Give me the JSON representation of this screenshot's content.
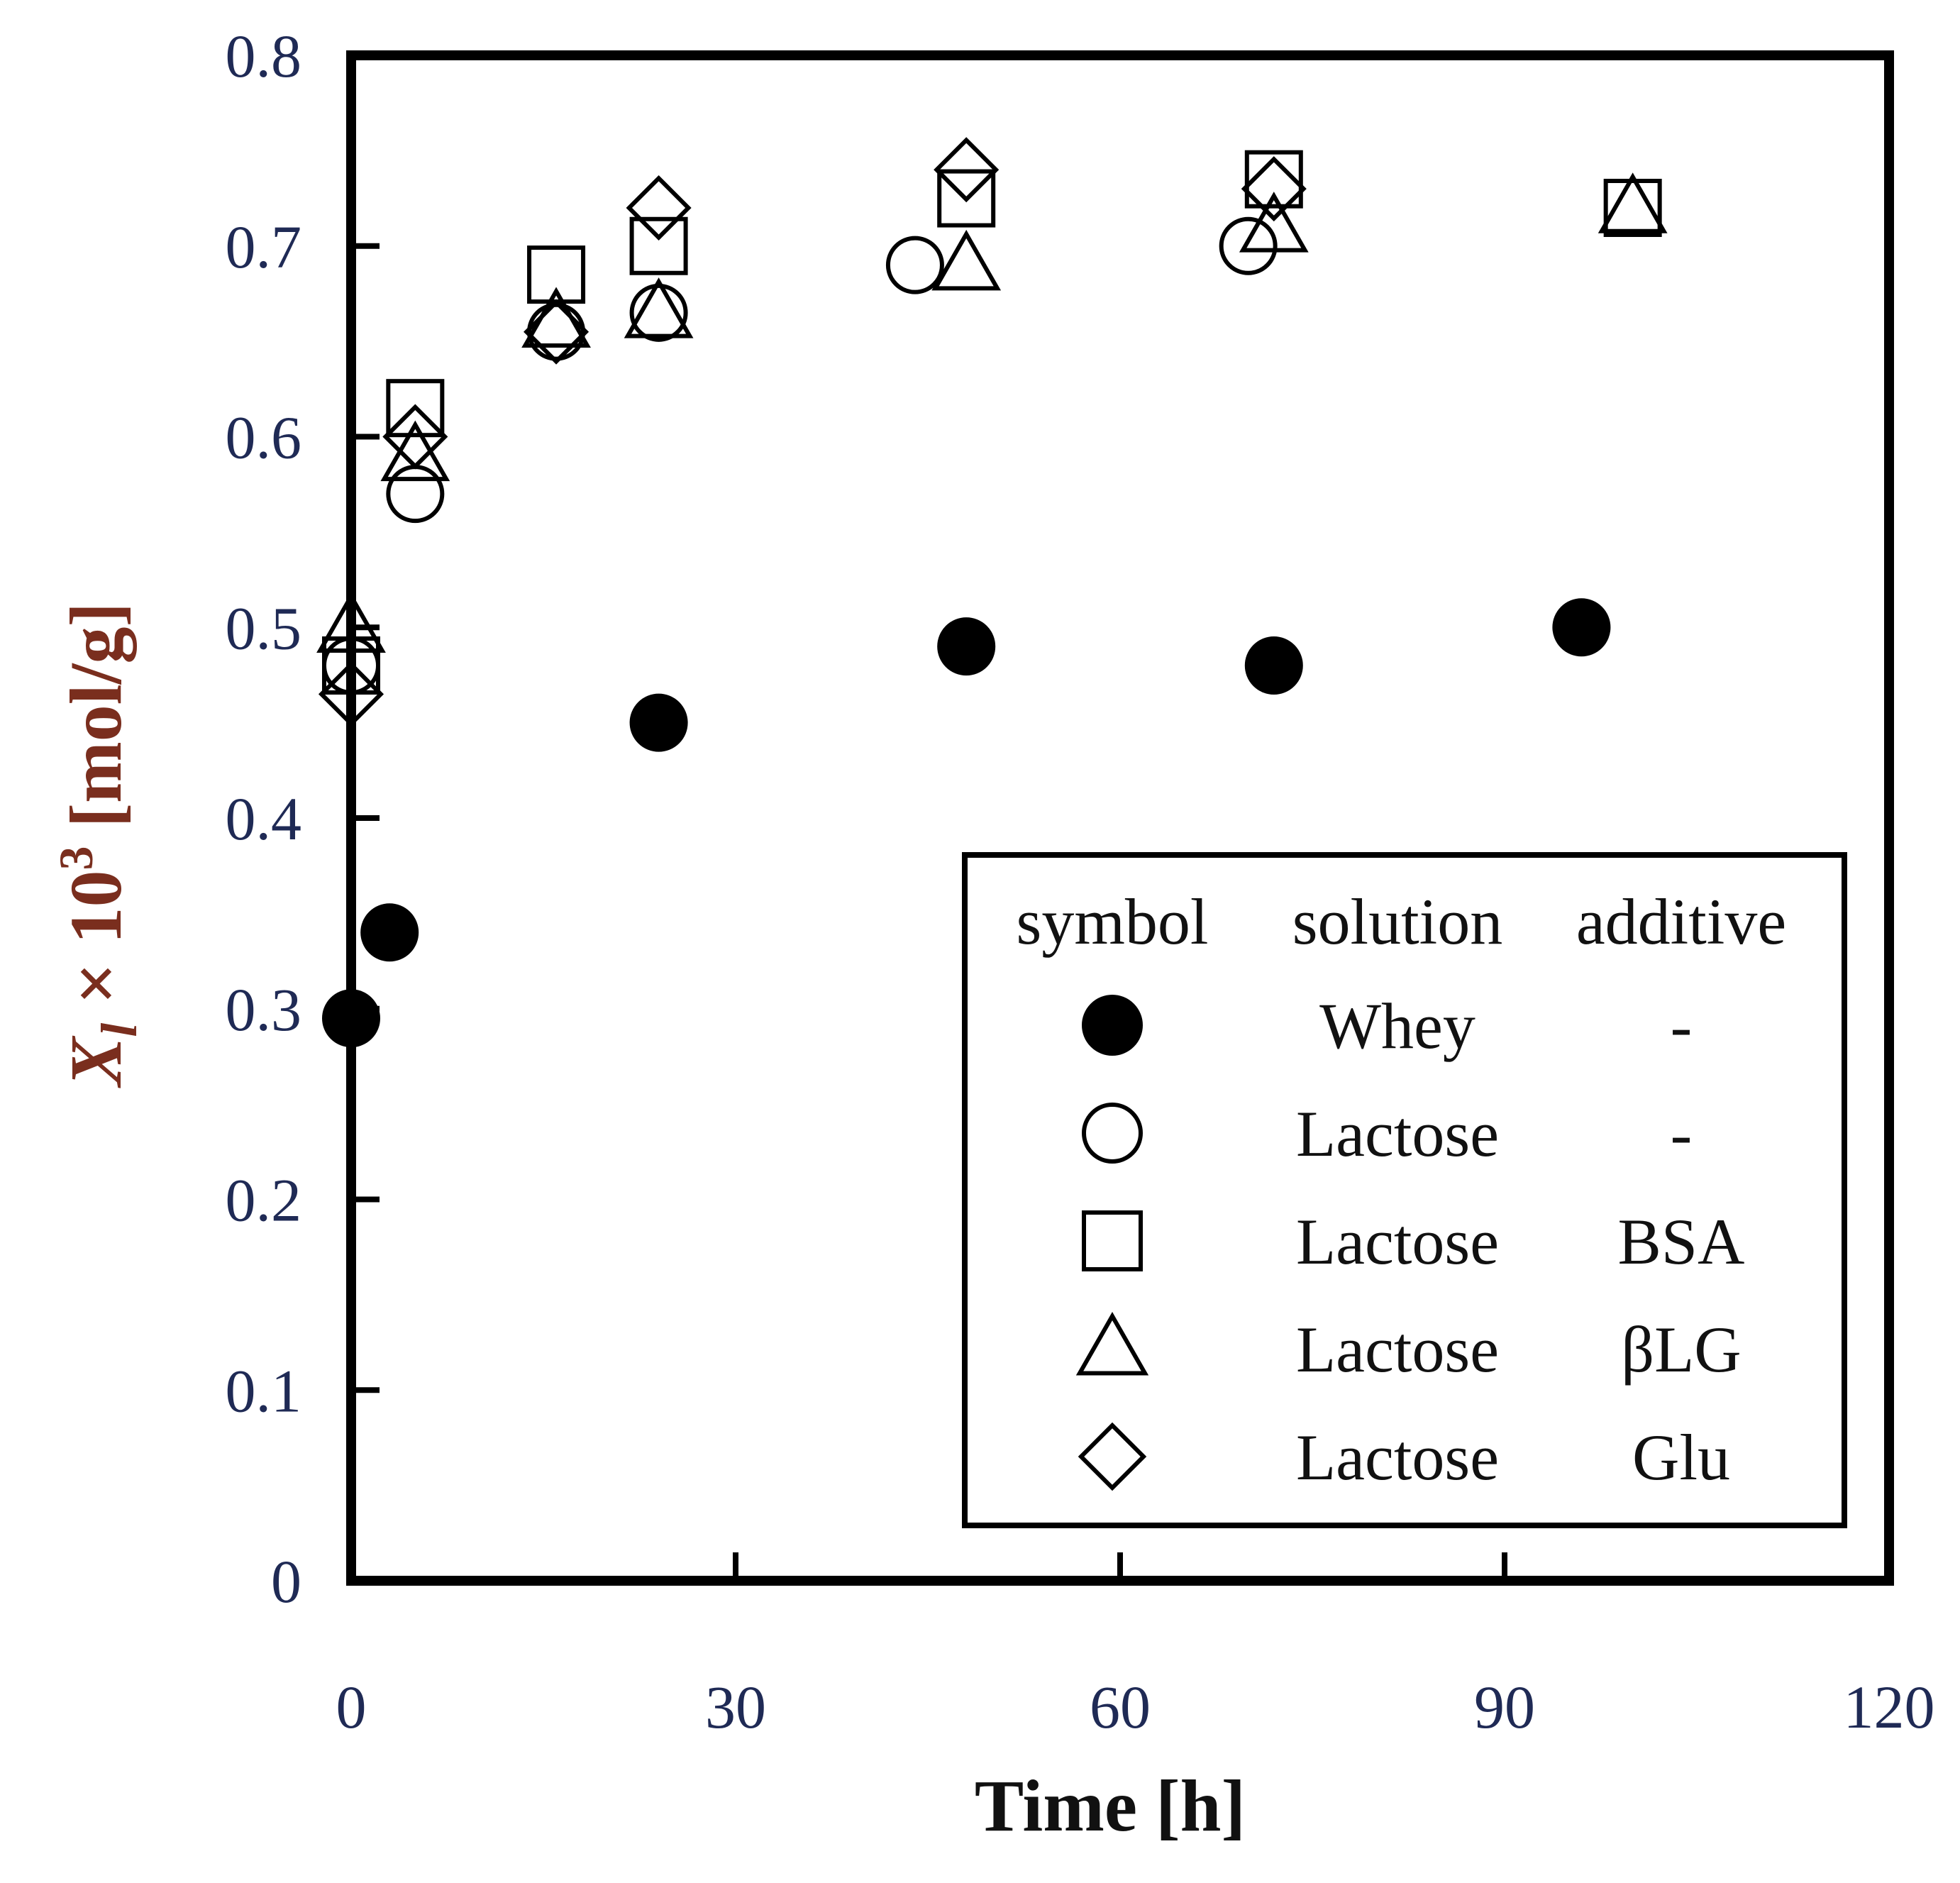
{
  "chart_data": {
    "type": "scatter",
    "title": "",
    "xlabel": "Time [h]",
    "ylabel": {
      "var": "X",
      "sub": "l",
      "times": " × 10",
      "sup": "3",
      "unit": " [mol/g]"
    },
    "xlim": [
      0,
      120
    ],
    "ylim": [
      0,
      0.8
    ],
    "xticks": [
      0,
      30,
      60,
      90,
      120
    ],
    "yticks": [
      0,
      0.1,
      0.2,
      0.3,
      0.4,
      0.5,
      0.6,
      0.7,
      0.8
    ],
    "xtick_labels": [
      "0",
      "30",
      "60",
      "90",
      "120"
    ],
    "ytick_labels": [
      "0",
      "0.1",
      "0.2",
      "0.3",
      "0.4",
      "0.5",
      "0.6",
      "0.7",
      "0.8"
    ],
    "legend": {
      "position": "bottom-right",
      "headers": [
        "symbol",
        "solution",
        "additive"
      ]
    },
    "series": [
      {
        "name": "Whey",
        "solution": "Whey",
        "additive": "-",
        "marker": "filled-circle",
        "x": [
          0,
          3,
          24,
          48,
          72,
          96
        ],
        "y": [
          0.295,
          0.34,
          0.45,
          0.49,
          0.48,
          0.5
        ]
      },
      {
        "name": "Lactose",
        "solution": "Lactose",
        "additive": "-",
        "marker": "open-circle",
        "x": [
          0,
          5,
          16,
          24,
          44,
          70
        ],
        "y": [
          0.48,
          0.57,
          0.655,
          0.665,
          0.69,
          0.7
        ]
      },
      {
        "name": "Lactose + BSA",
        "solution": "Lactose",
        "additive": "BSA",
        "marker": "open-square",
        "x": [
          0,
          5,
          16,
          24,
          48,
          72,
          100
        ],
        "y": [
          0.48,
          0.615,
          0.685,
          0.7,
          0.725,
          0.735,
          0.72
        ]
      },
      {
        "name": "Lactose + βLG",
        "solution": "Lactose",
        "additive": "βLG",
        "marker": "open-triangle",
        "x": [
          0,
          5,
          16,
          24,
          48,
          72,
          100
        ],
        "y": [
          0.5,
          0.59,
          0.66,
          0.665,
          0.69,
          0.71,
          0.72
        ]
      },
      {
        "name": "Lactose + Glu",
        "solution": "Lactose",
        "additive": "Glu",
        "marker": "open-diamond",
        "x": [
          0,
          5,
          16,
          24,
          48,
          72
        ],
        "y": [
          0.465,
          0.6,
          0.655,
          0.72,
          0.74,
          0.73
        ]
      }
    ]
  }
}
